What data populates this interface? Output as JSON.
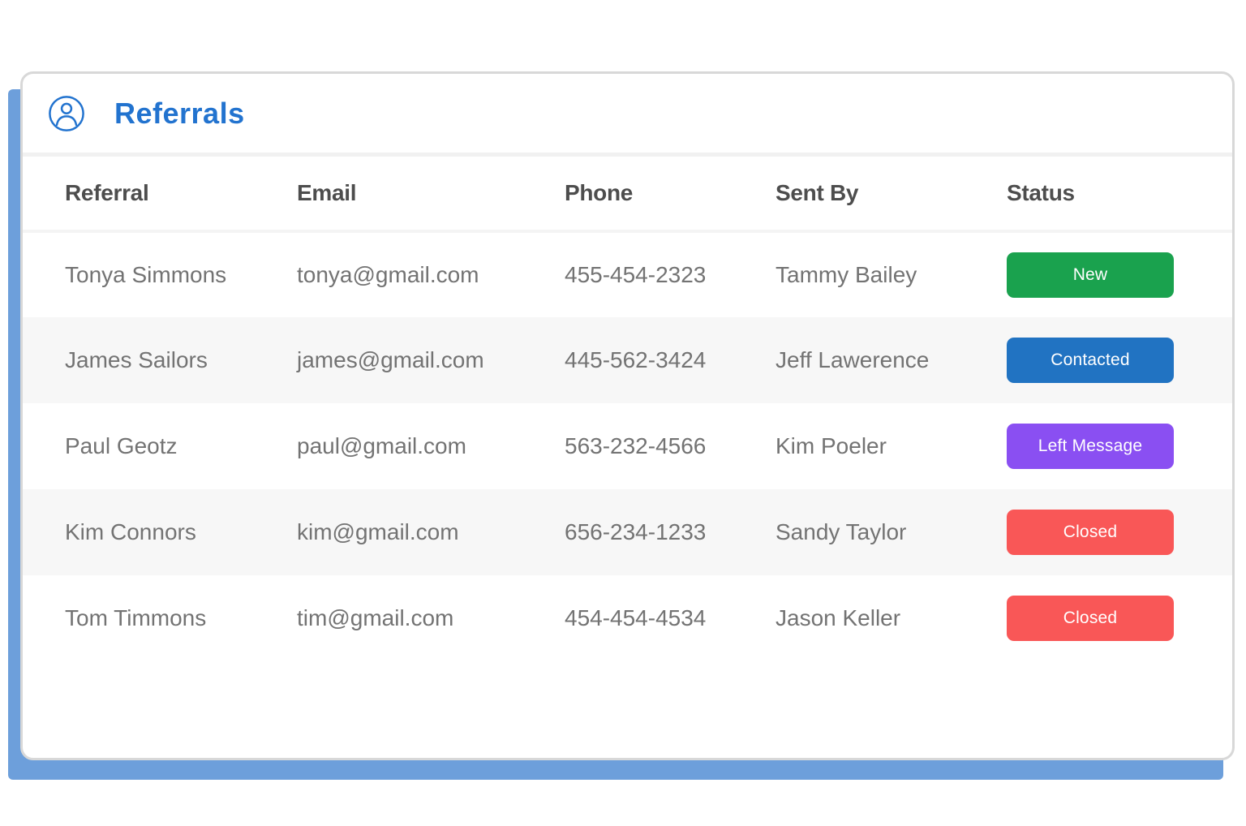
{
  "header": {
    "title": "Referrals",
    "icon": "person-icon",
    "accent_color": "#2273cf"
  },
  "table": {
    "columns": [
      "Referral",
      "Email",
      "Phone",
      "Sent By",
      "Status"
    ],
    "rows": [
      {
        "referral": "Tonya Simmons",
        "email": "tonya@gmail.com",
        "phone": "455-454-2323",
        "sent_by": "Tammy Bailey",
        "status": {
          "label": "New",
          "color": "#1aa24e"
        }
      },
      {
        "referral": "James Sailors",
        "email": "james@gmail.com",
        "phone": "445-562-3424",
        "sent_by": "Jeff Lawerence",
        "status": {
          "label": "Contacted",
          "color": "#2173c2"
        }
      },
      {
        "referral": "Paul Geotz",
        "email": "paul@gmail.com",
        "phone": "563-232-4566",
        "sent_by": "Kim Poeler",
        "status": {
          "label": "Left Message",
          "color": "#8a4ff2"
        }
      },
      {
        "referral": "Kim Connors",
        "email": "kim@gmail.com",
        "phone": "656-234-1233",
        "sent_by": "Sandy Taylor",
        "status": {
          "label": "Closed",
          "color": "#f95757"
        }
      },
      {
        "referral": "Tom Timmons",
        "email": "tim@gmail.com",
        "phone": "454-454-4534",
        "sent_by": "Jason Keller",
        "status": {
          "label": "Closed",
          "color": "#f95757"
        }
      }
    ],
    "zebra_row_color": "#f7f7f7"
  },
  "colors": {
    "backdrop_blue": "#6d9fdb",
    "card_border": "#d8d8d8",
    "header_divider": "#f1f1f1",
    "table_header_divider": "#f4f4f4",
    "header_text": "#4d4d4d",
    "body_text": "#737373"
  }
}
